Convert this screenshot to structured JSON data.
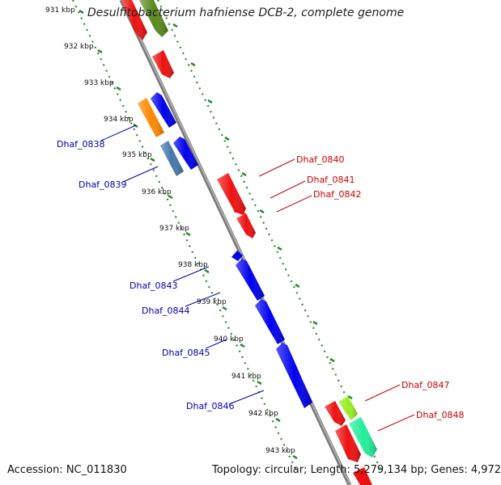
{
  "title": "Desulfitobacterium hafniense DCB-2, complete genome",
  "footer": {
    "accession": "Accession: NC_011830",
    "summary": "Topology: circular; Length: 5,279,134 bp; Genes: 4,972"
  },
  "colors": {
    "backbone": "#8a8a8a",
    "dotted_track": "#2e8b2e",
    "forward_label": "#cc0000",
    "reverse_label": "#0000aa"
  },
  "ticks": [
    "931 kbp",
    "932 kbp",
    "933 kbp",
    "934 kbp",
    "935 kbp",
    "936 kbp",
    "937 kbp",
    "938 kbp",
    "939 kbp",
    "940 kbp",
    "941 kbp",
    "942 kbp",
    "943 kbp"
  ],
  "genes_left": [
    {
      "name": "Dhaf_0838"
    },
    {
      "name": "Dhaf_0839"
    },
    {
      "name": "Dhaf_0843"
    },
    {
      "name": "Dhaf_0844"
    },
    {
      "name": "Dhaf_0845"
    },
    {
      "name": "Dhaf_0846"
    }
  ],
  "genes_right": [
    {
      "name": "Dhaf_0840"
    },
    {
      "name": "Dhaf_0841"
    },
    {
      "name": "Dhaf_0842"
    },
    {
      "name": "Dhaf_0847"
    },
    {
      "name": "Dhaf_0848"
    }
  ]
}
